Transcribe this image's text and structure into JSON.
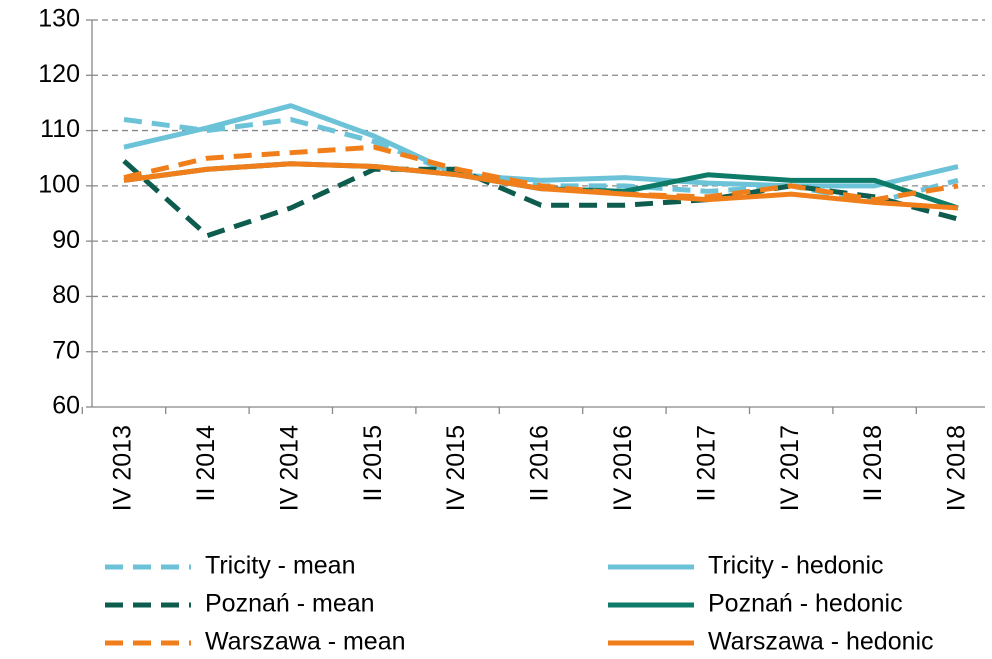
{
  "chart_data": {
    "type": "line",
    "categories": [
      "IV 2013",
      "II 2014",
      "IV 2014",
      "II 2015",
      "IV 2015",
      "II 2016",
      "IV 2016",
      "II 2017",
      "IV 2017",
      "II 2018",
      "IV 2018"
    ],
    "series": [
      {
        "name": "Tricity - mean",
        "color": "#6cc3d8",
        "style": "dashed",
        "values": [
          112,
          110,
          112,
          108,
          102,
          100,
          100,
          99,
          100,
          97,
          101
        ]
      },
      {
        "name": "Tricity - hedonic",
        "color": "#6cc3d8",
        "style": "solid",
        "values": [
          107,
          110.5,
          114.5,
          109,
          102,
          101,
          101.5,
          100.5,
          100,
          100,
          103.5
        ]
      },
      {
        "name": "Poznań - mean",
        "color": "#0d5c4d",
        "style": "dashed",
        "values": [
          104.5,
          91,
          96,
          103,
          103,
          96.5,
          96.5,
          97.5,
          100,
          98,
          94
        ]
      },
      {
        "name": "Poznań - hedonic",
        "color": "#0e7a68",
        "style": "solid",
        "values": [
          101,
          103,
          104,
          103.5,
          102,
          99.5,
          99,
          102,
          101,
          101,
          96
        ]
      },
      {
        "name": "Warszawa - mean",
        "color": "#f07f1b",
        "style": "dashed",
        "values": [
          101.5,
          105,
          106,
          107,
          103,
          100,
          98.5,
          98,
          100,
          97.5,
          100
        ]
      },
      {
        "name": "Warszawa - hedonic",
        "color": "#f07f1b",
        "style": "solid",
        "values": [
          101,
          103,
          104,
          103.5,
          102,
          99.5,
          98.5,
          97.5,
          98.5,
          97,
          96
        ]
      }
    ],
    "ylim": [
      60,
      130
    ],
    "yticks": [
      60,
      70,
      80,
      90,
      100,
      110,
      120,
      130
    ],
    "grid": true
  }
}
